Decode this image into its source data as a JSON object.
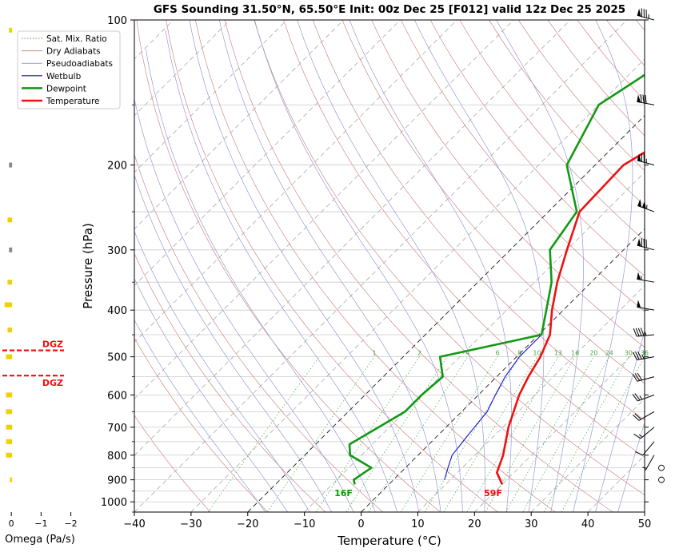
{
  "chart_data": {
    "type": "line",
    "title": "GFS Sounding 31.50°N, 65.50°E Init: 00z Dec 25 [F012] valid 12z Dec 25 2025",
    "xlabel": "Temperature (°C)",
    "ylabel": "Pressure (hPa)",
    "xlim": [
      -40,
      50
    ],
    "ylim": [
      1050,
      100
    ],
    "y_scale": "log",
    "x_ticks": [
      -40,
      -30,
      -20,
      -10,
      0,
      10,
      20,
      30,
      40,
      50
    ],
    "y_ticks": [
      100,
      200,
      300,
      400,
      500,
      600,
      700,
      800,
      900,
      1000
    ],
    "grid": true,
    "legend": {
      "position": "top-left",
      "entries": [
        "Sat. Mix. Ratio",
        "Dry Adiabats",
        "Pseudoadiabats",
        "Wetbulb",
        "Dewpoint",
        "Temperature"
      ]
    },
    "colors": {
      "temperature": "#ee1111",
      "dewpoint": "#119911",
      "wetbulb": "#1111cc",
      "dry_adiabat": "#d08a8a",
      "moist_adiabat": "#9a9ad6",
      "mixing_ratio": "#44aa44",
      "dgz": "#ee1111",
      "omega": "#f0d000"
    },
    "series": [
      {
        "name": "Temperature",
        "points": [
          [
            920,
            20.0
          ],
          [
            870,
            17.0
          ],
          [
            800,
            15.0
          ],
          [
            700,
            11.0
          ],
          [
            600,
            7.2
          ],
          [
            550,
            5.6
          ],
          [
            500,
            4.2
          ],
          [
            450,
            2.0
          ],
          [
            400,
            -2.0
          ],
          [
            350,
            -6.0
          ],
          [
            300,
            -10.0
          ],
          [
            250,
            -14.5
          ],
          [
            200,
            -15.0
          ],
          [
            150,
            -8.0
          ],
          [
            100,
            -5.0
          ]
        ]
      },
      {
        "name": "Dewpoint",
        "points": [
          [
            920,
            -6.0
          ],
          [
            900,
            -7.0
          ],
          [
            850,
            -6.0
          ],
          [
            800,
            -12.0
          ],
          [
            760,
            -14.0
          ],
          [
            650,
            -10.0
          ],
          [
            600,
            -10.0
          ],
          [
            550,
            -9.5
          ],
          [
            500,
            -13.5
          ],
          [
            450,
            0.5
          ],
          [
            400,
            -3.0
          ],
          [
            350,
            -7.0
          ],
          [
            300,
            -13.0
          ],
          [
            250,
            -15.0
          ],
          [
            200,
            -25.0
          ],
          [
            150,
            -30.0
          ],
          [
            100,
            -22.0
          ]
        ]
      },
      {
        "name": "Wetbulb",
        "points": [
          [
            900,
            9.0
          ],
          [
            850,
            7.5
          ],
          [
            800,
            6.0
          ],
          [
            750,
            5.5
          ],
          [
            700,
            5.0
          ],
          [
            650,
            4.5
          ],
          [
            600,
            3.0
          ],
          [
            550,
            1.5
          ],
          [
            500,
            0.5
          ],
          [
            450,
            0.5
          ]
        ]
      }
    ],
    "surface_labels": [
      {
        "text": "16F",
        "temp_c": -9.0,
        "pressure": 930
      },
      {
        "text": "59F",
        "temp_c": 18.5,
        "pressure": 930
      }
    ],
    "mixing_ratio_labels": [
      "1",
      "2",
      "4",
      "6",
      "8",
      "10",
      "13",
      "16",
      "20",
      "24",
      "30",
      "36"
    ],
    "dgz": {
      "label": "DGZ",
      "levels_hpa": [
        485,
        547
      ]
    },
    "omega": {
      "xlabel": "Omega (Pa/s)",
      "x_ticks": [
        0,
        -1,
        -2
      ],
      "xlim": [
        0.3,
        -2.2
      ],
      "values": [
        [
          105,
          0.05
        ],
        [
          200,
          0.05
        ],
        [
          260,
          0.1
        ],
        [
          300,
          0.05
        ],
        [
          350,
          0.1
        ],
        [
          390,
          0.2
        ],
        [
          440,
          0.1
        ],
        [
          500,
          0.15
        ],
        [
          600,
          0.15
        ],
        [
          650,
          0.15
        ],
        [
          700,
          0.15
        ],
        [
          750,
          0.15
        ],
        [
          800,
          0.15
        ],
        [
          900,
          0.02
        ]
      ]
    },
    "wind_barbs": [
      {
        "p": 100,
        "dir": 285,
        "spd": 85
      },
      {
        "p": 150,
        "dir": 280,
        "spd": 80
      },
      {
        "p": 200,
        "dir": 285,
        "spd": 75
      },
      {
        "p": 250,
        "dir": 290,
        "spd": 105
      },
      {
        "p": 300,
        "dir": 285,
        "spd": 80
      },
      {
        "p": 350,
        "dir": 280,
        "spd": 55
      },
      {
        "p": 400,
        "dir": 280,
        "spd": 50
      },
      {
        "p": 450,
        "dir": 265,
        "spd": 45
      },
      {
        "p": 500,
        "dir": 260,
        "spd": 35
      },
      {
        "p": 550,
        "dir": 255,
        "spd": 30
      },
      {
        "p": 600,
        "dir": 250,
        "spd": 25
      },
      {
        "p": 650,
        "dir": 240,
        "spd": 20
      },
      {
        "p": 700,
        "dir": 230,
        "spd": 15
      },
      {
        "p": 750,
        "dir": 220,
        "spd": 10
      },
      {
        "p": 800,
        "dir": 210,
        "spd": 5
      },
      {
        "p": 850,
        "dir": 0,
        "spd": 0
      },
      {
        "p": 900,
        "dir": 0,
        "spd": 0
      }
    ]
  }
}
